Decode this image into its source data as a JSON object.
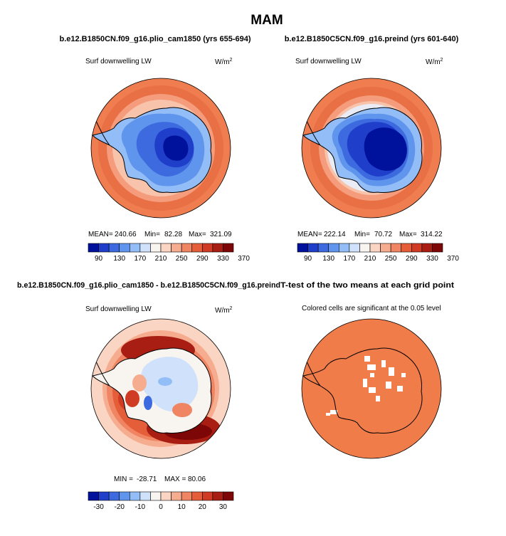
{
  "page": {
    "season_title": "MAM"
  },
  "colors": {
    "ocean_orange": "#ef7d4f",
    "significant": "#f07c4a",
    "land_line": "#000000"
  },
  "chart_data": [
    {
      "type": "heatmap",
      "id": "plio",
      "title": "b.e12.B1850CN.f09_g16.plio_cam1850 (yrs 655-694)",
      "left_label": "Surf downwelling LW",
      "units_base": "W/m",
      "units_exp": "2",
      "stats": {
        "mean_label": "MEAN=",
        "mean": "240.66",
        "min_label": "Min=",
        "min": "82.28",
        "max_label": "Max=",
        "max": "321.09"
      },
      "colorbar_ticks": [
        "90",
        "130",
        "170",
        "210",
        "250",
        "290",
        "330",
        "370"
      ],
      "colorbar_colors": [
        "#00129b",
        "#1f3fcb",
        "#3d6bdf",
        "#5f95ec",
        "#93bdf6",
        "#cfe1fb",
        "#f8f4f0",
        "#fbd5c3",
        "#f6ac8f",
        "#f08563",
        "#e45e3a",
        "#cf3b23",
        "#a81e12",
        "#7d0706"
      ]
    },
    {
      "type": "heatmap",
      "id": "preind",
      "title": "b.e12.B1850C5CN.f09_g16.preind (yrs 601-640)",
      "left_label": "Surf downwelling LW",
      "units_base": "W/m",
      "units_exp": "2",
      "stats": {
        "mean_label": "MEAN=",
        "mean": "222.14",
        "min_label": "Min=",
        "min": "70.72",
        "max_label": "Max=",
        "max": "314.22"
      },
      "colorbar_ticks": [
        "90",
        "130",
        "170",
        "210",
        "250",
        "290",
        "330",
        "370"
      ],
      "colorbar_colors": [
        "#00129b",
        "#1f3fcb",
        "#3d6bdf",
        "#5f95ec",
        "#93bdf6",
        "#cfe1fb",
        "#f8f4f0",
        "#fbd5c3",
        "#f6ac8f",
        "#f08563",
        "#e45e3a",
        "#cf3b23",
        "#a81e12",
        "#7d0706"
      ]
    },
    {
      "type": "heatmap",
      "id": "diff",
      "title": "b.e12.B1850CN.f09_g16.plio_cam1850 - b.e12.B1850C5CN.f09_g16.preind",
      "left_label": "Surf downwelling LW",
      "units_base": "W/m",
      "units_exp": "2",
      "stats": {
        "min_label": "MIN =",
        "min": "-28.71",
        "max_label": "MAX =",
        "max": "80.06"
      },
      "colorbar_ticks": [
        "-30",
        "-20",
        "-10",
        "0",
        "10",
        "20",
        "30"
      ],
      "colorbar_colors": [
        "#00129b",
        "#1f3fcb",
        "#3d6bdf",
        "#5f95ec",
        "#93bdf6",
        "#cfe1fb",
        "#f8f4f0",
        "#fbd5c3",
        "#f6ac8f",
        "#f08563",
        "#e45e3a",
        "#cf3b23",
        "#a81e12",
        "#7d0706"
      ]
    },
    {
      "type": "heatmap",
      "id": "ttest",
      "title": "T-test of the two means at each grid point",
      "left_label": "Colored cells are significant at the 0.05 level",
      "significance_level": 0.05
    }
  ]
}
